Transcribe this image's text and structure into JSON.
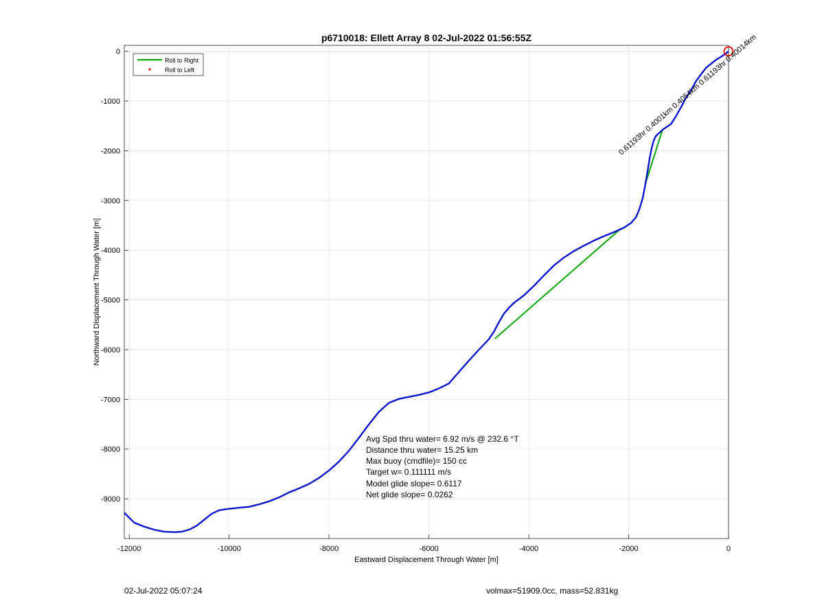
{
  "colors": {
    "track": "#0a14c8",
    "roll_right": "#1aaa1a",
    "roll_left": "#e00000",
    "marker": "#dd0000",
    "grid": "#e3e3e3",
    "axis": "#222222"
  },
  "chart_data": {
    "type": "line",
    "title": "p6710018: Ellett Array 8 02-Jul-2022 01:56:55Z",
    "xlabel": "Eastward Displacement Through Water [m]",
    "ylabel": "Northward Displacement Through Water [m]",
    "xlim": [
      -12100,
      0
    ],
    "ylim": [
      -9800,
      120
    ],
    "xticks": [
      -12000,
      -10000,
      -8000,
      -6000,
      -4000,
      -2000,
      0
    ],
    "yticks": [
      0,
      -1000,
      -2000,
      -3000,
      -4000,
      -5000,
      -6000,
      -7000,
      -8000,
      -9000
    ],
    "grid": true,
    "legend": {
      "placement": "top-left",
      "entries": [
        {
          "label": "Roll to Right",
          "style": "line"
        },
        {
          "label": "Roll to Left",
          "style": "dot"
        }
      ]
    },
    "series": [
      {
        "style": "track",
        "x": [
          -12100,
          -11900,
          -11700,
          -11500,
          -11300,
          -11100,
          -10950,
          -10800,
          -10650,
          -10500,
          -10350,
          -10200,
          -10000,
          -9800,
          -9600,
          -9400,
          -9200,
          -9000,
          -8800,
          -8600,
          -8400,
          -8200,
          -8000,
          -7800,
          -7600,
          -7400,
          -7200,
          -7000,
          -6800,
          -6600,
          -6400,
          -6200,
          -6000,
          -5800,
          -5600,
          -5400,
          -5200,
          -5000,
          -4800,
          -4700,
          -4600,
          -4500,
          -4400,
          -4300,
          -4100,
          -3900,
          -3700,
          -3500,
          -3300,
          -3100,
          -2900,
          -2700,
          -2500,
          -2300,
          -2100,
          -1950,
          -1850,
          -1780,
          -1720,
          -1670,
          -1620,
          -1580,
          -1540,
          -1500,
          -1460,
          -1400,
          -1300,
          -1150,
          -1050,
          -950,
          -850,
          -750,
          -650,
          -550,
          -450,
          -350,
          -250,
          -150,
          -60,
          0
        ],
        "y": [
          -9280,
          -9480,
          -9560,
          -9620,
          -9660,
          -9670,
          -9660,
          -9620,
          -9540,
          -9420,
          -9300,
          -9230,
          -9200,
          -9180,
          -9160,
          -9110,
          -9050,
          -8970,
          -8870,
          -8790,
          -8700,
          -8580,
          -8430,
          -8250,
          -8030,
          -7770,
          -7500,
          -7250,
          -7070,
          -6990,
          -6950,
          -6910,
          -6860,
          -6780,
          -6680,
          -6450,
          -6220,
          -6000,
          -5790,
          -5640,
          -5450,
          -5280,
          -5160,
          -5060,
          -4910,
          -4720,
          -4510,
          -4310,
          -4150,
          -4020,
          -3910,
          -3810,
          -3720,
          -3640,
          -3550,
          -3450,
          -3330,
          -3160,
          -2960,
          -2700,
          -2400,
          -2150,
          -1950,
          -1800,
          -1710,
          -1650,
          -1560,
          -1460,
          -1300,
          -1120,
          -930,
          -780,
          -600,
          -460,
          -330,
          -250,
          -170,
          -110,
          -50,
          0
        ]
      },
      {
        "name": "Roll to Right",
        "style": "segments",
        "segments": [
          {
            "x": [
              -4680,
              -2150
            ],
            "y": [
              -5780,
              -3560
            ]
          },
          {
            "x": [
              -1670,
              -1330
            ],
            "y": [
              -2680,
              -1600
            ]
          }
        ]
      }
    ],
    "start_marker": {
      "x": 0,
      "y": 0
    },
    "track_annotation": "0.61193hr 0.4001km 0.4054km 0.61193hr 0.40014km",
    "stats": [
      "Avg Spd thru water=  6.92 m/s @ 232.6 °T",
      "Distance thru water= 15.25 km",
      "Max buoy (cmdfile)= 150 cc",
      "Target w= 0.111111 m/s",
      "Model glide slope= 0.6117",
      "Net glide slope= 0.0262"
    ]
  },
  "footer": {
    "left": "02-Jul-2022 05:07:24",
    "right": "volmax=51909.0cc, mass=52.831kg"
  }
}
